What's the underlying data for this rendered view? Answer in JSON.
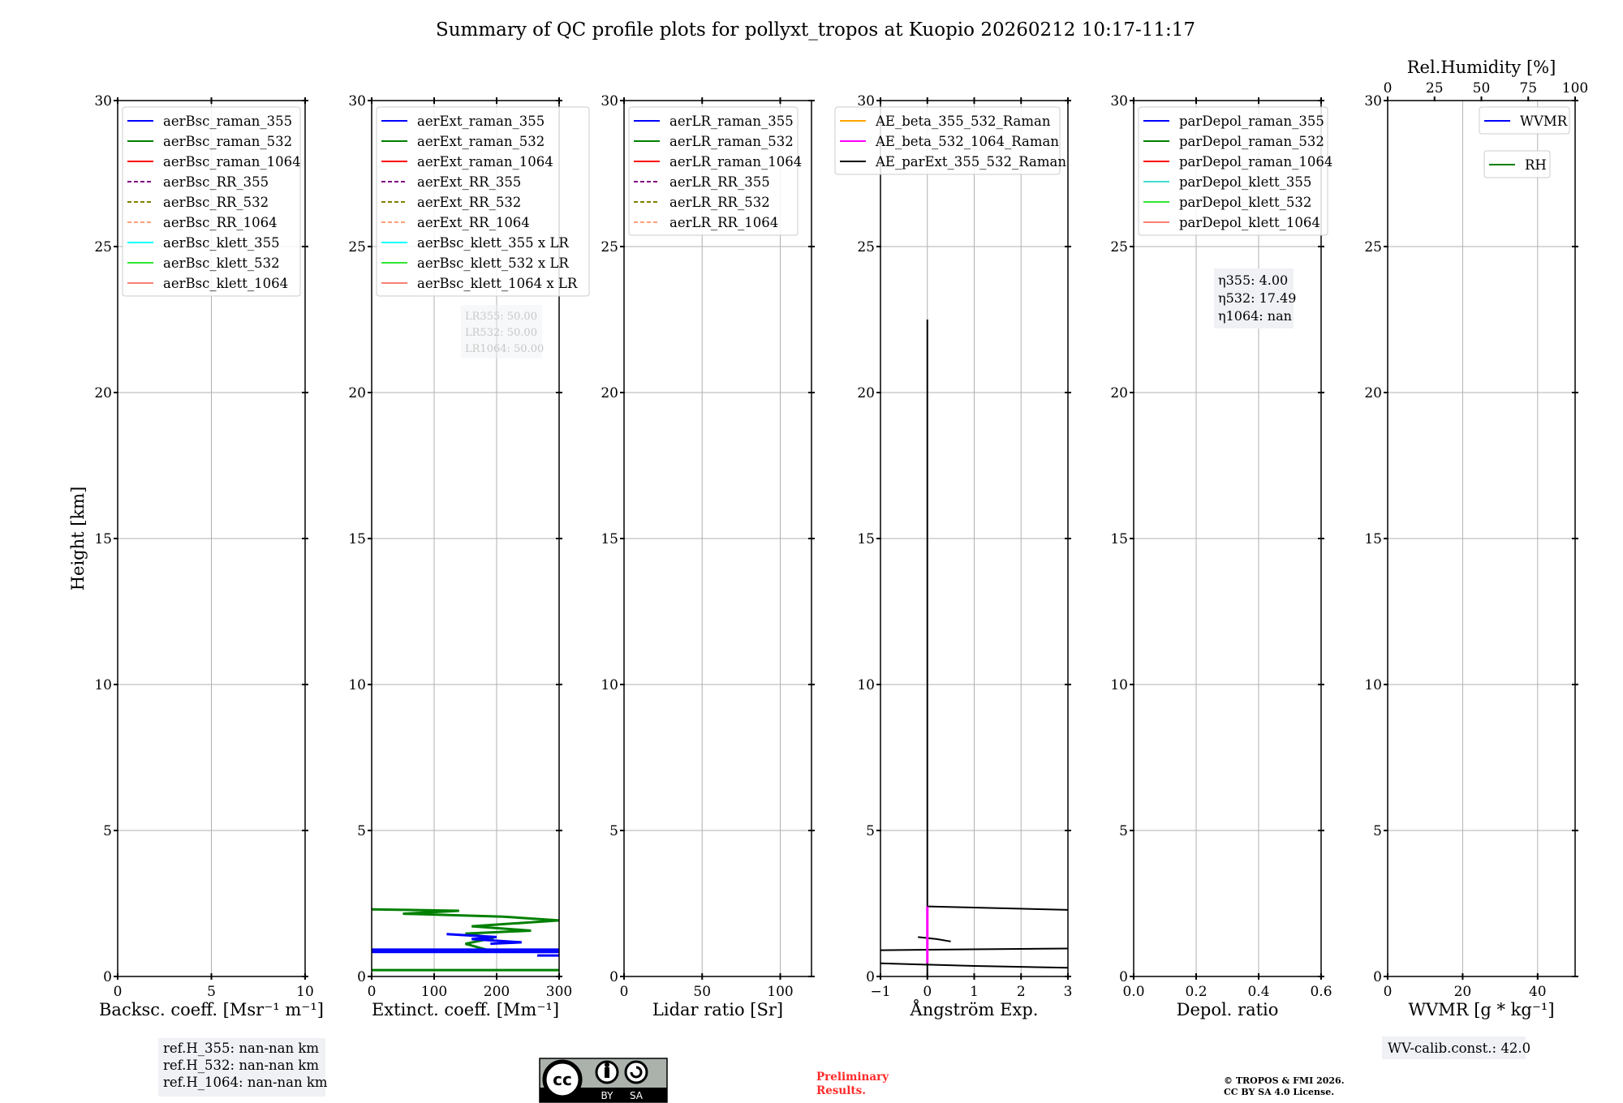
{
  "title": "Summary of QC profile plots for pollyxt_tropos at Kuopio 20260212 10:17-11:17",
  "ylabel": "Height [km]",
  "footer": {
    "refH": [
      "ref.H_355: nan-nan km",
      "ref.H_532: nan-nan km",
      "ref.H_1064: nan-nan km"
    ],
    "wv_calib": "WV-calib.const.: 42.0",
    "preliminary": [
      "Preliminary",
      "Results."
    ],
    "copyright": [
      "© TROPOS & FMI 2026.",
      "CC BY SA 4.0 License."
    ],
    "cc_logo": {
      "by": "BY",
      "sa": "SA",
      "cc": "cc"
    }
  },
  "chart_data": [
    {
      "type": "line",
      "id": "backscatter",
      "xlabel": "Backsc. coeff. [Msr⁻¹ m⁻¹]",
      "ylabel": "Height [km]",
      "xlim": [
        0,
        10
      ],
      "ylim": [
        0,
        30
      ],
      "xticks": [
        0,
        5,
        10
      ],
      "yticks": [
        0,
        5,
        10,
        15,
        20,
        25,
        30
      ],
      "grid": true,
      "legend_placement": "top-left",
      "legend": [
        {
          "label": "aerBsc_raman_355",
          "color": "#0000ff",
          "dash": false
        },
        {
          "label": "aerBsc_raman_532",
          "color": "#008000",
          "dash": false
        },
        {
          "label": "aerBsc_raman_1064",
          "color": "#ff0000",
          "dash": false
        },
        {
          "label": "aerBsc_RR_355",
          "color": "#800080",
          "dash": true
        },
        {
          "label": "aerBsc_RR_532",
          "color": "#808000",
          "dash": true
        },
        {
          "label": "aerBsc_RR_1064",
          "color": "#ffa07a",
          "dash": true
        },
        {
          "label": "aerBsc_klett_355",
          "color": "#00ffff",
          "dash": false
        },
        {
          "label": "aerBsc_klett_532",
          "color": "#32e632",
          "dash": false
        },
        {
          "label": "aerBsc_klett_1064",
          "color": "#fa8072",
          "dash": false
        }
      ],
      "series": []
    },
    {
      "type": "line",
      "id": "extinction",
      "xlabel": "Extinct. coeff. [Mm⁻¹]",
      "xlim": [
        0,
        300
      ],
      "ylim": [
        0,
        30
      ],
      "xticks": [
        0,
        100,
        200,
        300
      ],
      "yticks": [
        0,
        5,
        10,
        15,
        20,
        25,
        30
      ],
      "grid": true,
      "legend_placement": "top-left",
      "legend": [
        {
          "label": "aerExt_raman_355",
          "color": "#0000ff",
          "dash": false
        },
        {
          "label": "aerExt_raman_532",
          "color": "#008000",
          "dash": false
        },
        {
          "label": "aerExt_raman_1064",
          "color": "#ff0000",
          "dash": false
        },
        {
          "label": "aerExt_RR_355",
          "color": "#800080",
          "dash": true
        },
        {
          "label": "aerExt_RR_532",
          "color": "#808000",
          "dash": true
        },
        {
          "label": "aerExt_RR_1064",
          "color": "#ffa07a",
          "dash": true
        },
        {
          "label": "aerBsc_klett_355 x LR",
          "color": "#00ffff",
          "dash": false
        },
        {
          "label": "aerBsc_klett_532 x LR",
          "color": "#32e632",
          "dash": false
        },
        {
          "label": "aerBsc_klett_1064 x LR",
          "color": "#fa8072",
          "dash": false
        }
      ],
      "annotation": [
        "LR355: 50.00",
        "LR532: 50.00",
        "LR1064: 50.00"
      ],
      "series": [
        {
          "name": "aerExt_raman_532",
          "color": "#008000",
          "points": [
            [
              0,
              2.3
            ],
            [
              140,
              2.25
            ],
            [
              50,
              2.15
            ],
            [
              210,
              2.05
            ],
            [
              300,
              1.92
            ],
            [
              160,
              1.72
            ],
            [
              255,
              1.57
            ],
            [
              150,
              1.47
            ],
            [
              195,
              1.32
            ],
            [
              150,
              1.12
            ],
            [
              190,
              0.88
            ]
          ]
        },
        {
          "name": "aerExt_raman_532_low",
          "color": "#008000",
          "points": [
            [
              0,
              0.22
            ],
            [
              300,
              0.22
            ]
          ]
        },
        {
          "name": "aerExt_raman_355",
          "color": "#0000ff",
          "points": [
            [
              120,
              1.45
            ],
            [
              200,
              1.35
            ],
            [
              160,
              1.28
            ],
            [
              240,
              1.17
            ],
            [
              190,
              1.12
            ]
          ]
        },
        {
          "name": "aerExt_raman_355_b",
          "color": "#0000ff",
          "points": [
            [
              0,
              0.92
            ],
            [
              300,
              0.92
            ]
          ]
        },
        {
          "name": "aerExt_raman_355_c",
          "color": "#0000ff",
          "points": [
            [
              0,
              0.84
            ],
            [
              300,
              0.84
            ]
          ]
        },
        {
          "name": "aerExt_raman_355_d",
          "color": "#0000ff",
          "points": [
            [
              265,
              0.72
            ],
            [
              300,
              0.72
            ]
          ]
        }
      ]
    },
    {
      "type": "line",
      "id": "lidar-ratio",
      "xlabel": "Lidar ratio [Sr]",
      "xlim": [
        0,
        120
      ],
      "ylim": [
        0,
        30
      ],
      "xticks": [
        0,
        50,
        100
      ],
      "yticks": [
        0,
        5,
        10,
        15,
        20,
        25,
        30
      ],
      "grid": true,
      "legend_placement": "top-left",
      "legend": [
        {
          "label": "aerLR_raman_355",
          "color": "#0000ff",
          "dash": false
        },
        {
          "label": "aerLR_raman_532",
          "color": "#008000",
          "dash": false
        },
        {
          "label": "aerLR_raman_1064",
          "color": "#ff0000",
          "dash": false
        },
        {
          "label": "aerLR_RR_355",
          "color": "#800080",
          "dash": true
        },
        {
          "label": "aerLR_RR_532",
          "color": "#808000",
          "dash": true
        },
        {
          "label": "aerLR_RR_1064",
          "color": "#ffa07a",
          "dash": true
        }
      ],
      "series": []
    },
    {
      "type": "line",
      "id": "angstrom",
      "xlabel": "Ångström Exp.",
      "xlim": [
        -1,
        3
      ],
      "ylim": [
        0,
        30
      ],
      "xticks": [
        -1,
        0,
        1,
        2,
        3
      ],
      "yticks": [
        0,
        5,
        10,
        15,
        20,
        25,
        30
      ],
      "grid": true,
      "legend_placement": "top-left",
      "legend": [
        {
          "label": "AE_beta_355_532_Raman",
          "color": "#ffa500",
          "dash": false
        },
        {
          "label": "AE_beta_532_1064_Raman",
          "color": "#ff00ff",
          "dash": false
        },
        {
          "label": "AE_parExt_355_532_Raman",
          "color": "#000000",
          "dash": false
        }
      ],
      "series": [
        {
          "name": "AE_parExt_vertical",
          "color": "#000000",
          "points": [
            [
              0,
              0
            ],
            [
              0,
              22.5
            ]
          ]
        },
        {
          "name": "AE_parExt_a",
          "color": "#000000",
          "points": [
            [
              0,
              2.4
            ],
            [
              3,
              2.28
            ]
          ]
        },
        {
          "name": "AE_parExt_b",
          "color": "#000000",
          "points": [
            [
              -0.2,
              1.35
            ],
            [
              0.2,
              1.28
            ],
            [
              0.5,
              1.2
            ]
          ]
        },
        {
          "name": "AE_parExt_c",
          "color": "#000000",
          "points": [
            [
              -1,
              0.9
            ],
            [
              3,
              0.96
            ]
          ]
        },
        {
          "name": "AE_parExt_d",
          "color": "#000000",
          "points": [
            [
              -1,
              0.45
            ],
            [
              1,
              0.36
            ],
            [
              3,
              0.3
            ]
          ]
        },
        {
          "name": "AE_beta_532_1064_Raman",
          "color": "#ff00ff",
          "points": [
            [
              0,
              0.45
            ],
            [
              0,
              2.4
            ]
          ]
        }
      ]
    },
    {
      "type": "line",
      "id": "depol",
      "xlabel": "Depol. ratio",
      "xlim": [
        0,
        0.6
      ],
      "ylim": [
        0,
        30
      ],
      "xticks": [
        0.0,
        0.2,
        0.4,
        0.6
      ],
      "xtick_labels": [
        "0.0",
        "0.2",
        "0.4",
        "0.6"
      ],
      "yticks": [
        0,
        5,
        10,
        15,
        20,
        25,
        30
      ],
      "grid": true,
      "legend_placement": "top-left",
      "legend": [
        {
          "label": "parDepol_raman_355",
          "color": "#0000ff",
          "dash": false
        },
        {
          "label": "parDepol_raman_532",
          "color": "#008000",
          "dash": false
        },
        {
          "label": "parDepol_raman_1064",
          "color": "#ff0000",
          "dash": false
        },
        {
          "label": "parDepol_klett_355",
          "color": "#40e0d0",
          "dash": false
        },
        {
          "label": "parDepol_klett_532",
          "color": "#32e632",
          "dash": false
        },
        {
          "label": "parDepol_klett_1064",
          "color": "#fa8072",
          "dash": false
        }
      ],
      "annotation": [
        "η355: 4.00",
        "η532: 17.49",
        "η1064: nan"
      ],
      "series": []
    },
    {
      "type": "line",
      "id": "wvmr",
      "xlabel": "WVMR [g * kg⁻¹]",
      "xlim": [
        0,
        50
      ],
      "ylim": [
        0,
        30
      ],
      "xticks": [
        0,
        20,
        40
      ],
      "yticks": [
        0,
        5,
        10,
        15,
        20,
        25,
        30
      ],
      "grid": true,
      "top_axis": {
        "label": "Rel.Humidity [%]",
        "xlim": [
          0,
          100
        ],
        "xticks": [
          0,
          25,
          50,
          75,
          100
        ]
      },
      "legend_placement": "top-right",
      "legend": [
        {
          "label": "WVMR",
          "color": "#0000ff",
          "dash": false
        }
      ],
      "legend2": [
        {
          "label": "RH",
          "color": "#008000",
          "dash": false
        }
      ],
      "series": []
    }
  ]
}
